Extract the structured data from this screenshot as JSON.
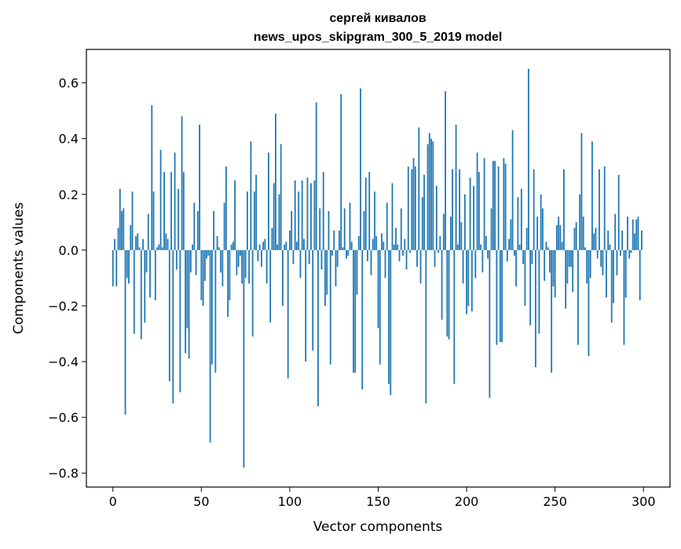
{
  "chart_data": {
    "type": "bar",
    "title_line1": "сергей кивалов",
    "title_line2": "news_upos_skipgram_300_5_2019 model",
    "xlabel": "Vector components",
    "ylabel": "Components values",
    "xlim": [
      -15,
      315
    ],
    "ylim": [
      -0.85,
      0.72
    ],
    "xticks": [
      0,
      50,
      100,
      150,
      200,
      250,
      300
    ],
    "xtick_labels": [
      "0",
      "50",
      "100",
      "150",
      "200",
      "250",
      "300"
    ],
    "yticks": [
      -0.8,
      -0.6,
      -0.4,
      -0.2,
      0.0,
      0.2,
      0.4,
      0.6
    ],
    "ytick_labels": [
      "−0.8",
      "−0.6",
      "−0.4",
      "−0.2",
      "0.0",
      "0.2",
      "0.4",
      "0.6"
    ],
    "bar_color": "#1f77b4",
    "bar_width": 0.8,
    "values": [
      -0.13,
      0.04,
      -0.13,
      0.08,
      0.22,
      0.14,
      0.15,
      -0.59,
      -0.1,
      -0.12,
      0.09,
      0.21,
      -0.3,
      0.05,
      0.06,
      0.01,
      -0.32,
      0.04,
      -0.26,
      -0.08,
      0.13,
      -0.17,
      0.52,
      0.21,
      -0.18,
      0.01,
      0.02,
      0.36,
      0.01,
      0.28,
      0.06,
      0.04,
      -0.47,
      0.28,
      -0.55,
      0.35,
      -0.07,
      0.22,
      -0.51,
      0.48,
      0.28,
      -0.37,
      -0.28,
      -0.39,
      -0.08,
      0.02,
      0.17,
      -0.09,
      0.14,
      0.45,
      -0.18,
      -0.2,
      -0.11,
      -0.03,
      -0.02,
      -0.69,
      -0.41,
      0.14,
      -0.44,
      0.05,
      0.01,
      -0.08,
      -0.13,
      0.17,
      0.3,
      -0.24,
      -0.18,
      0.02,
      0.03,
      0.25,
      -0.09,
      -0.06,
      -0.02,
      -0.12,
      -0.78,
      -0.1,
      0.21,
      -0.12,
      0.39,
      -0.31,
      0.21,
      0.27,
      -0.04,
      0.02,
      -0.06,
      0.03,
      0.04,
      -0.12,
      0.35,
      -0.26,
      0.08,
      0.24,
      0.49,
      0.02,
      0.2,
      0.38,
      -0.2,
      0.02,
      0.03,
      -0.46,
      0.07,
      0.14,
      -0.05,
      0.25,
      0.03,
      0.21,
      -0.1,
      0.25,
      0.04,
      -0.4,
      0.26,
      -0.05,
      0.24,
      -0.36,
      0.25,
      0.53,
      -0.56,
      0.15,
      -0.07,
      0.28,
      -0.2,
      -0.16,
      0.14,
      -0.41,
      -0.02,
      0.07,
      -0.13,
      -0.06,
      0.07,
      0.56,
      0.01,
      0.15,
      -0.03,
      -0.02,
      0.17,
      0.03,
      -0.44,
      -0.44,
      -0.16,
      0.05,
      0.58,
      -0.5,
      0.14,
      0.26,
      -0.04,
      0.28,
      -0.09,
      0.04,
      0.21,
      0.05,
      -0.28,
      -0.41,
      0.06,
      0.03,
      -0.1,
      0.17,
      -0.48,
      -0.52,
      0.24,
      0.02,
      0.08,
      0.02,
      -0.04,
      0.15,
      -0.02,
      0.04,
      -0.07,
      0.3,
      -0.01,
      0.29,
      0.33,
      0.3,
      -0.06,
      0.44,
      -0.12,
      0.19,
      0.27,
      -0.55,
      0.38,
      0.42,
      0.4,
      0.39,
      -0.06,
      0.23,
      -0.01,
      0.05,
      -0.25,
      0.13,
      0.57,
      -0.31,
      -0.32,
      0.12,
      0.29,
      -0.48,
      0.45,
      0.02,
      0.29,
      0.1,
      -0.12,
      0.2,
      -0.23,
      -0.2,
      0.26,
      -0.22,
      0.23,
      -0.1,
      0.35,
      0.28,
      0.02,
      -0.08,
      0.33,
      0.05,
      -0.03,
      -0.53,
      0.15,
      0.32,
      0.32,
      -0.34,
      0.3,
      -0.33,
      -0.33,
      0.33,
      0.31,
      -0.04,
      0.04,
      0.11,
      0.43,
      -0.02,
      -0.13,
      0.19,
      0.02,
      0.22,
      -0.05,
      -0.2,
      0.08,
      0.65,
      -0.27,
      -0.05,
      0.29,
      -0.42,
      0.12,
      -0.3,
      0.2,
      0.15,
      -0.11,
      0.03,
      0.01,
      -0.08,
      -0.44,
      -0.13,
      -0.17,
      0.09,
      0.12,
      0.09,
      0.03,
      0.29,
      -0.21,
      -0.12,
      -0.06,
      -0.06,
      -0.15,
      0.08,
      0.1,
      -0.34,
      0.2,
      0.42,
      0.12,
      0.01,
      -0.12,
      -0.38,
      -0.1,
      0.39,
      0.06,
      0.08,
      -0.03,
      0.29,
      -0.06,
      -0.09,
      0.3,
      -0.17,
      0.07,
      0.02,
      -0.26,
      -0.19,
      0.13,
      -0.09,
      0.27,
      -0.02,
      0.07,
      -0.34,
      -0.17,
      0.12,
      -0.03,
      -0.01,
      0.11,
      0.06,
      0.11,
      0.12,
      -0.18,
      0.07
    ]
  }
}
